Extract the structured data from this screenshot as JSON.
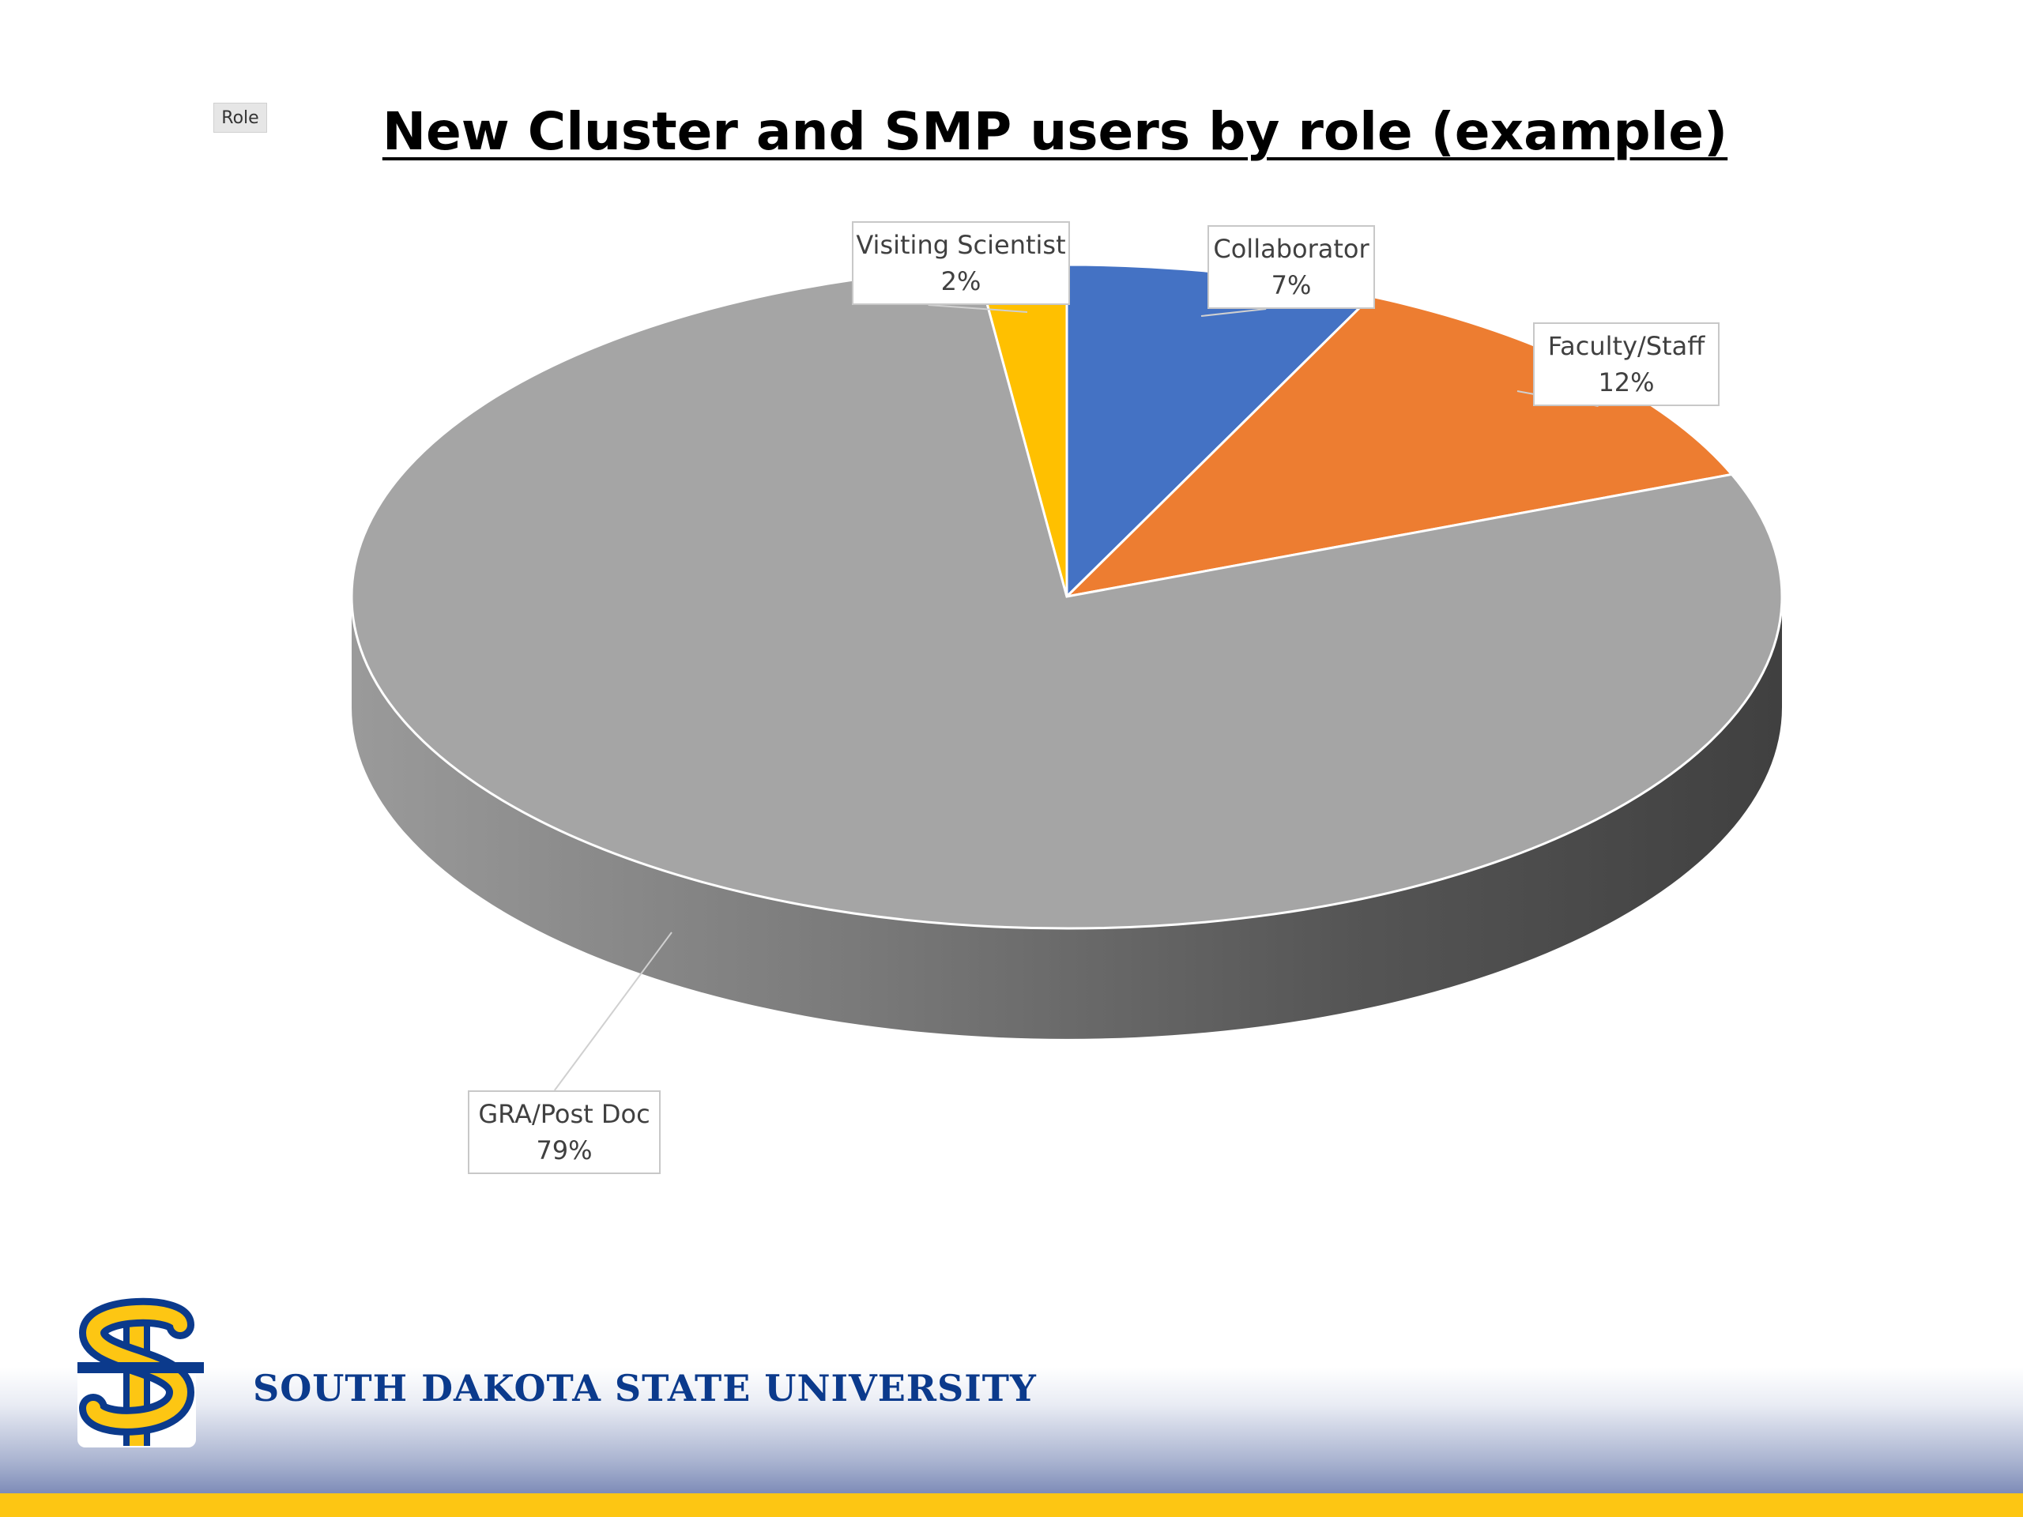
{
  "filter": {
    "label": "Role"
  },
  "chart_data": {
    "type": "pie",
    "title": "New Cluster and SMP users by role (example)",
    "slices": [
      {
        "label": "Collaborator",
        "value": 7,
        "display": "7%",
        "color": "#4472c4"
      },
      {
        "label": "Faculty/Staff",
        "value": 12,
        "display": "12%",
        "color": "#ed7d31"
      },
      {
        "label": "GRA/Post Doc",
        "value": 79,
        "display": "79%",
        "color": "#a5a5a5"
      },
      {
        "label": "Visiting Scientist",
        "value": 2,
        "display": "2%",
        "color": "#ffc000"
      }
    ],
    "style": "3d-exploded-none",
    "legend": "none"
  },
  "footer": {
    "university": "SOUTH DAKOTA STATE UNIVERSITY",
    "logo_text": "SD"
  },
  "colors": {
    "brand_blue": "#0b3a8c",
    "brand_gold": "#fdc613"
  }
}
